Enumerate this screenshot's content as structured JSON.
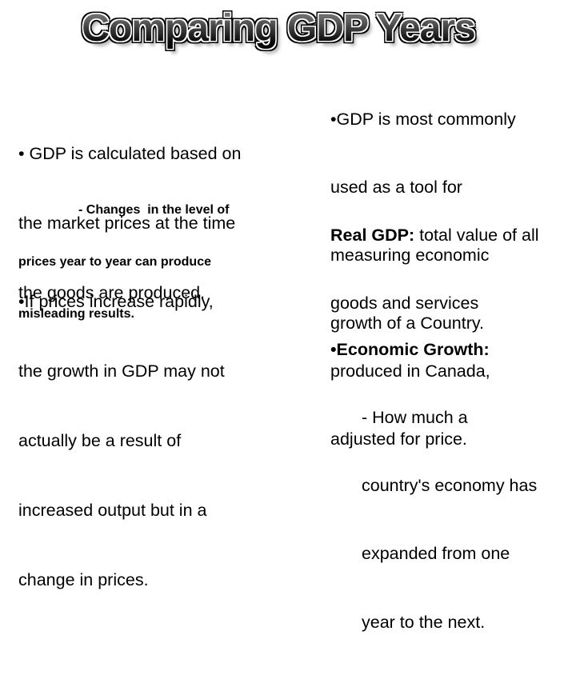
{
  "slide": {
    "title": "Comparing GDP Years",
    "left_column": {
      "bullet1_lines": [
        "• GDP is calculated based on",
        "the market prices at the time",
        "the goods are produced."
      ],
      "subbullet_lines": [
        "- Changes  in the level of",
        "prices year to year can produce",
        "misleading results."
      ],
      "bullet2_lines": [
        "•If prices increase rapidly,",
        "the growth in GDP may not",
        "actually be a result of",
        "increased output but in a",
        "change in prices."
      ]
    },
    "right_column": {
      "bullet1_lines": [
        "•GDP is most commonly",
        "used as a tool for",
        "measuring economic",
        "growth of a Country."
      ],
      "real_gdp_bold": "Real GDP:",
      "real_gdp_rest": " total value of all",
      "real_gdp_lines": [
        "goods and services",
        "produced in Canada,",
        "adjusted for price."
      ],
      "econ_label": "•Economic Growth:",
      "econ_lines": [
        "- How much a",
        "country's economy has",
        "expanded from one",
        "year to the next."
      ]
    }
  }
}
